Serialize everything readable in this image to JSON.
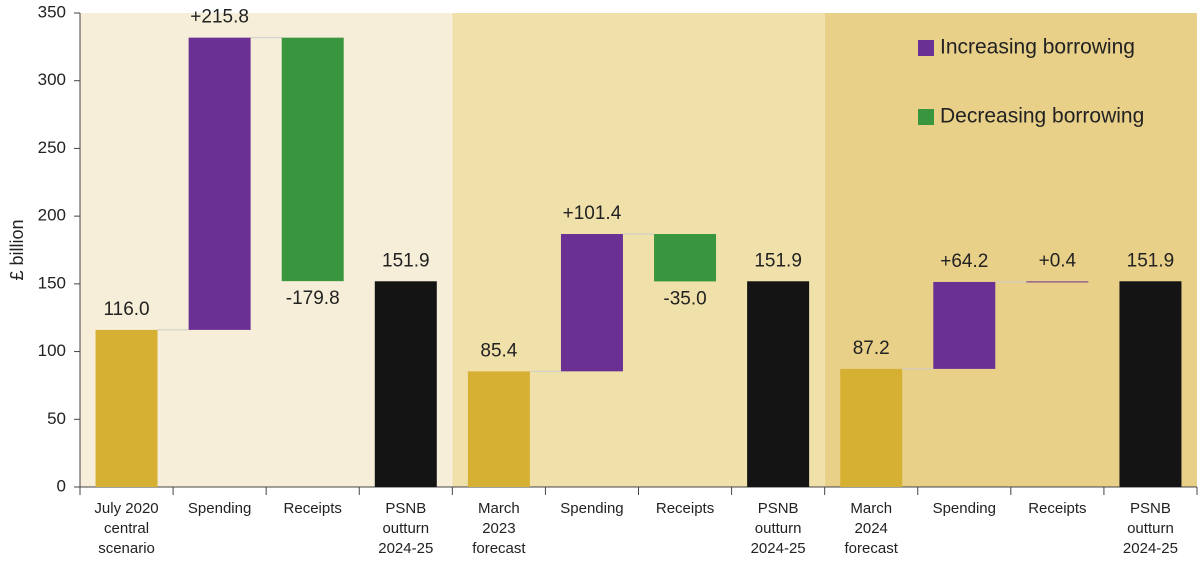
{
  "chart_data": {
    "type": "waterfall",
    "y_label": "£ billion",
    "categories": [
      [
        "July 2020",
        "central",
        "scenario"
      ],
      [
        "Spending"
      ],
      [
        "Receipts"
      ],
      [
        "PSNB",
        "outturn",
        "2024-25"
      ],
      [
        "March",
        "2023",
        "forecast"
      ],
      [
        "Spending"
      ],
      [
        "Receipts"
      ],
      [
        "PSNB",
        "outturn",
        "2024-25"
      ],
      [
        "March",
        "2024",
        "forecast"
      ],
      [
        "Spending"
      ],
      [
        "Receipts"
      ],
      [
        "PSNB",
        "outturn",
        "2024-25"
      ]
    ],
    "values": [
      116.0,
      215.8,
      -179.8,
      151.9,
      85.4,
      101.4,
      -35.0,
      151.9,
      87.2,
      64.2,
      0.4,
      151.9
    ],
    "value_labels": [
      "116.0",
      "+215.8",
      "-179.8",
      "151.9",
      "85.4",
      "+101.4",
      "-35.0",
      "151.9",
      "87.2",
      "+64.2",
      "+0.4",
      "151.9"
    ],
    "measures": [
      "absolute",
      "relative",
      "relative",
      "total",
      "absolute",
      "relative",
      "relative",
      "total",
      "absolute",
      "relative",
      "relative",
      "total"
    ],
    "bar_colors": [
      "#d6b032",
      "#6a3093",
      "#3a963e",
      "#141414",
      "#d6b032",
      "#6a3093",
      "#3a963e",
      "#141414",
      "#d6b032",
      "#6a3093",
      "#6a3093",
      "#141414"
    ],
    "legend": [
      {
        "name": "Increasing borrowing",
        "color": "#6a3093"
      },
      {
        "name": "Decreasing borrowing",
        "color": "#3a963e"
      }
    ],
    "legend_position": "upper right",
    "ylim": [
      0,
      350
    ],
    "yticks": [
      0,
      50,
      100,
      150,
      200,
      250,
      300,
      350
    ]
  }
}
